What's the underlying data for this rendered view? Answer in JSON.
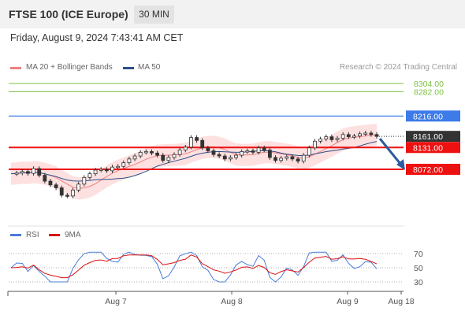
{
  "header": {
    "title": "FTSE 100 (ICE Europe)",
    "timeframe": "30 MIN"
  },
  "timestamp": "Friday, August 9, 2024 7:43:41 AM CET",
  "legend": {
    "ma20_bb": {
      "label": "MA 20 + Bollinger Bands",
      "color": "#f08080"
    },
    "ma50": {
      "label": "MA 50",
      "color": "#2c4f8a"
    }
  },
  "credit": "Research © 2024 Trading Central",
  "price_levels": [
    {
      "label": "8304.00",
      "value": 8304,
      "color": "#7dc242",
      "style": "text"
    },
    {
      "label": "8282.00",
      "value": 8282,
      "color": "#7dc242",
      "style": "text"
    },
    {
      "label": "8216.00",
      "value": 8216,
      "color": "#3d7be8",
      "style": "tag"
    },
    {
      "label": "8161.00",
      "value": 8161,
      "color": "#333333",
      "style": "tag"
    },
    {
      "label": "8131.00",
      "value": 8131,
      "color": "#ee1111",
      "style": "tag"
    },
    {
      "label": "8072.00",
      "value": 8072,
      "color": "#ee1111",
      "style": "tag"
    }
  ],
  "rsi": {
    "legend": [
      {
        "label": "RSI",
        "color": "#4a7cd9"
      },
      {
        "label": "9MA",
        "color": "#dd1111"
      }
    ],
    "levels": [
      "70",
      "50",
      "30"
    ]
  },
  "x_axis": {
    "labels": [
      "Aug 7",
      "Aug 8",
      "Aug 9",
      "Aug 18"
    ]
  },
  "chart_data": {
    "type": "candlestick",
    "series": [
      {
        "name": "MA 20 + Bollinger Bands",
        "kind": "overlay"
      },
      {
        "name": "MA 50",
        "kind": "overlay"
      }
    ],
    "close_path": [
      8060,
      8062,
      8066,
      8061,
      8074,
      8056,
      8040,
      8030,
      8022,
      8002,
      8000,
      8016,
      8032,
      8050,
      8060,
      8070,
      8072,
      8068,
      8078,
      8080,
      8090,
      8100,
      8108,
      8118,
      8120,
      8116,
      8110,
      8096,
      8104,
      8112,
      8124,
      8132,
      8158,
      8150,
      8130,
      8122,
      8112,
      8108,
      8100,
      8104,
      8110,
      8120,
      8122,
      8118,
      8130,
      8124,
      8104,
      8096,
      8102,
      8106,
      8100,
      8094,
      8110,
      8130,
      8148,
      8154,
      8160,
      8152,
      8156,
      8166,
      8160,
      8162,
      8168,
      8170,
      8166,
      8161
    ],
    "resistances": [
      8216,
      8282,
      8304
    ],
    "pivot": 8131,
    "support": 8072,
    "last": 8161
  }
}
